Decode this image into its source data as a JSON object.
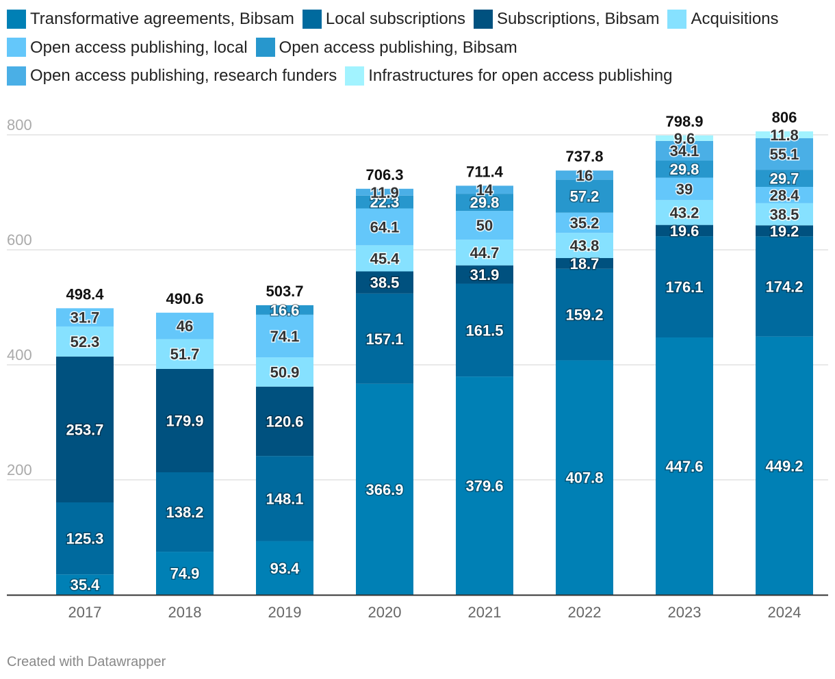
{
  "chart_data": {
    "type": "bar",
    "stacked": true,
    "categories": [
      "2017",
      "2018",
      "2019",
      "2020",
      "2021",
      "2022",
      "2023",
      "2024"
    ],
    "series": [
      {
        "name": "Transformative agreements, Bibsam",
        "color": "#0080b5",
        "values": [
          35.4,
          74.9,
          93.4,
          366.9,
          379.6,
          407.8,
          447.6,
          449.2
        ]
      },
      {
        "name": "Local subscriptions",
        "color": "#006a9e",
        "values": [
          125.3,
          138.2,
          148.1,
          157.1,
          161.5,
          159.2,
          176.1,
          174.2
        ]
      },
      {
        "name": "Subscriptions, Bibsam",
        "color": "#00517f",
        "values": [
          253.7,
          179.9,
          120.6,
          38.5,
          31.9,
          18.7,
          19.6,
          19.2
        ]
      },
      {
        "name": "Acquisitions",
        "color": "#86e1ff",
        "values": [
          52.3,
          51.7,
          50.9,
          45.4,
          44.7,
          43.8,
          43.2,
          38.5
        ]
      },
      {
        "name": "Open access publishing, local",
        "color": "#64c7fa",
        "values": [
          31.7,
          46,
          74.1,
          64.1,
          50,
          35.2,
          39,
          28.4
        ]
      },
      {
        "name": "Open access publishing, Bibsam",
        "color": "#2797cd",
        "values": [
          null,
          null,
          16.6,
          22.3,
          29.8,
          57.2,
          29.8,
          29.7
        ]
      },
      {
        "name": "Open access publishing, research funders",
        "color": "#4aafe6",
        "values": [
          null,
          null,
          null,
          11.9,
          14,
          16,
          34.1,
          55.1
        ]
      },
      {
        "name": "Infrastructures for open access publishing",
        "color": "#a2f3ff",
        "values": [
          null,
          null,
          null,
          null,
          null,
          null,
          9.6,
          11.8
        ]
      }
    ],
    "totals": [
      "498.4",
      "490.6",
      "503.7",
      "706.3",
      "711.4",
      "737.8",
      "798.9",
      "806"
    ],
    "yticks": [
      200,
      400,
      600,
      800
    ],
    "ylim": [
      0,
      800
    ],
    "legend_position": "top"
  },
  "footer": "Created with Datawrapper"
}
